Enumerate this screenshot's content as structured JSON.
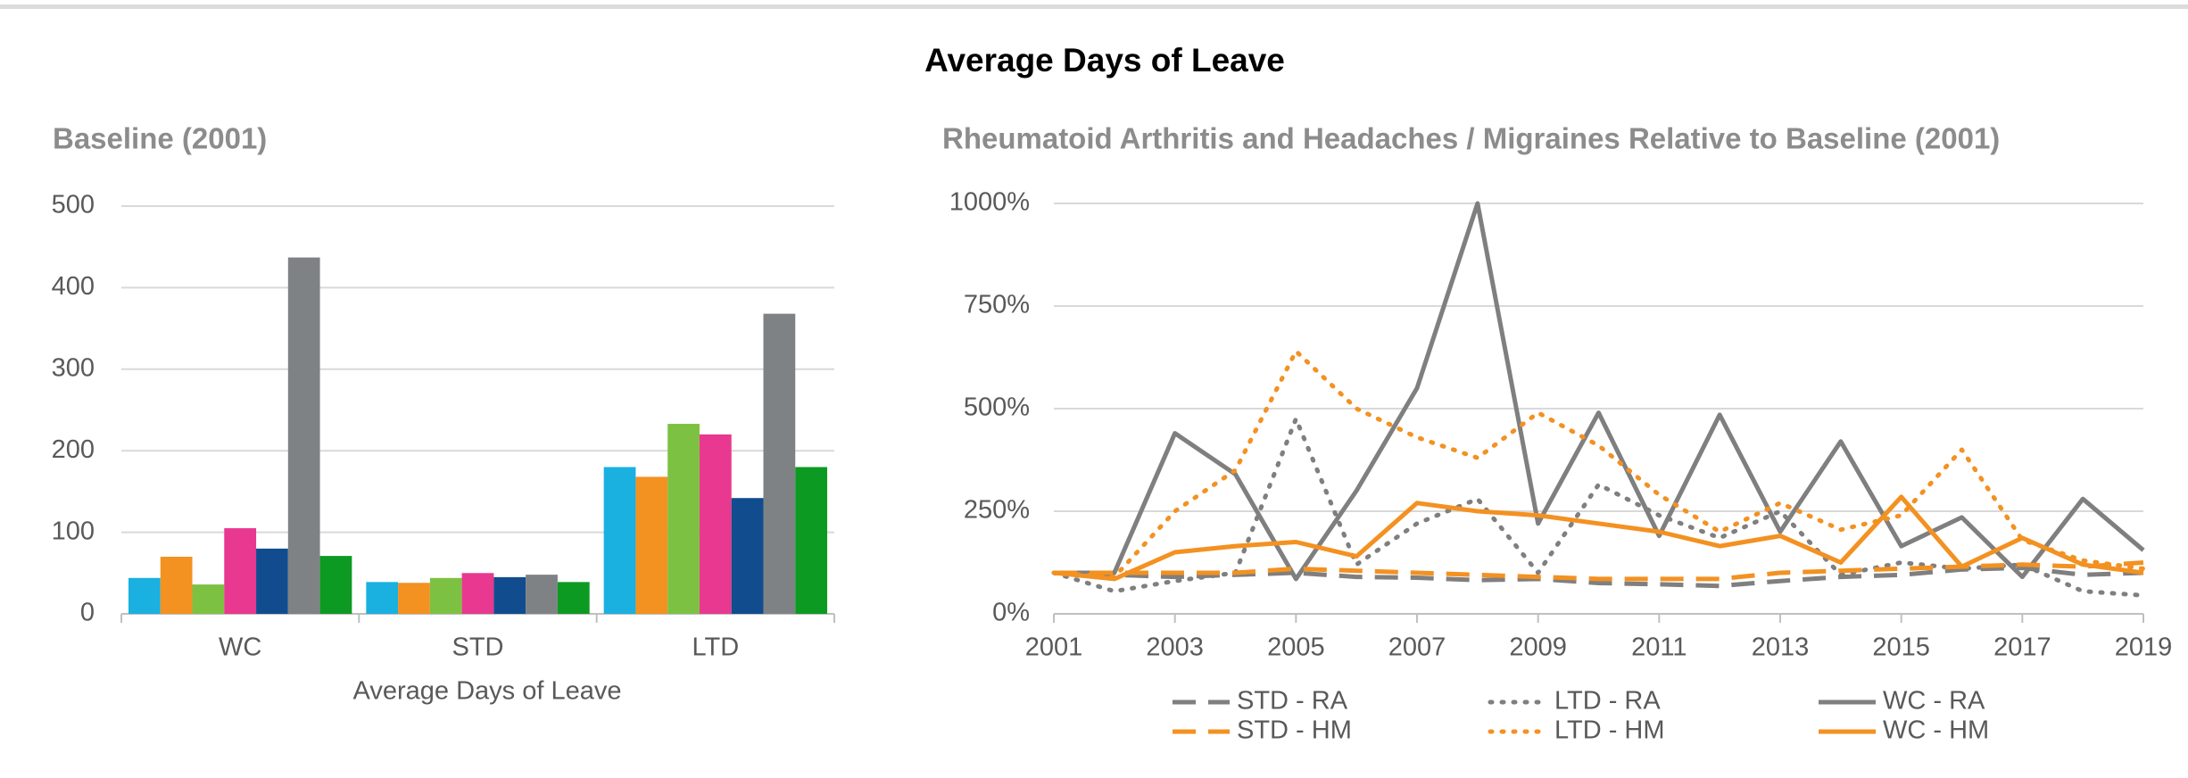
{
  "title": "Average Days of Leave",
  "chart_data": [
    {
      "type": "bar",
      "title": "Baseline (2001)",
      "x_label": "Average Days of Leave",
      "categories": [
        "WC",
        "STD",
        "LTD"
      ],
      "series": [
        {
          "color": "#1ab0e0",
          "values": [
            44,
            39,
            180
          ]
        },
        {
          "color": "#f39121",
          "values": [
            70,
            38,
            168
          ]
        },
        {
          "color": "#7dc142",
          "values": [
            36,
            44,
            233
          ]
        },
        {
          "color": "#e8388f",
          "values": [
            105,
            50,
            220
          ]
        },
        {
          "color": "#114d8e",
          "values": [
            80,
            45,
            142
          ]
        },
        {
          "color": "#7f8285",
          "values": [
            437,
            48,
            368
          ]
        },
        {
          "color": "#0d9a23",
          "values": [
            71,
            39,
            180
          ]
        }
      ],
      "ylim": [
        0,
        500
      ],
      "yticks": [
        0,
        100,
        200,
        300,
        400,
        500
      ],
      "grid": true
    },
    {
      "type": "line",
      "title": "Rheumatoid Arthritis and Headaches / Migraines Relative to Baseline (2001)",
      "x": [
        2001,
        2002,
        2003,
        2004,
        2005,
        2006,
        2007,
        2008,
        2009,
        2010,
        2011,
        2012,
        2013,
        2014,
        2015,
        2016,
        2017,
        2018,
        2019
      ],
      "series": [
        {
          "name": "STD - RA",
          "color": "#7f7f7f",
          "dash": "dashed",
          "values": [
            100,
            95,
            90,
            95,
            100,
            90,
            88,
            82,
            85,
            75,
            72,
            68,
            80,
            90,
            95,
            108,
            112,
            95,
            100
          ]
        },
        {
          "name": "LTD - RA",
          "color": "#7f7f7f",
          "dash": "dotted",
          "values": [
            100,
            55,
            80,
            100,
            475,
            120,
            220,
            280,
            100,
            315,
            240,
            185,
            250,
            95,
            125,
            110,
            120,
            55,
            45
          ]
        },
        {
          "name": "WC - RA",
          "color": "#7f7f7f",
          "dash": "solid",
          "values": [
            100,
            100,
            440,
            340,
            85,
            300,
            550,
            1000,
            220,
            490,
            190,
            485,
            200,
            420,
            165,
            235,
            90,
            280,
            155
          ]
        },
        {
          "name": "STD - HM",
          "color": "#f39121",
          "dash": "dashed",
          "values": [
            100,
            100,
            100,
            100,
            110,
            105,
            100,
            95,
            90,
            85,
            85,
            85,
            100,
            105,
            110,
            115,
            120,
            115,
            125
          ]
        },
        {
          "name": "LTD - HM",
          "color": "#f39121",
          "dash": "dotted",
          "values": [
            100,
            90,
            250,
            350,
            640,
            500,
            430,
            380,
            490,
            410,
            290,
            200,
            270,
            205,
            240,
            400,
            180,
            130,
            110
          ]
        },
        {
          "name": "WC - HM",
          "color": "#f39121",
          "dash": "solid",
          "values": [
            100,
            85,
            150,
            165,
            175,
            140,
            270,
            250,
            240,
            220,
            200,
            165,
            190,
            125,
            285,
            115,
            185,
            120,
            100
          ]
        }
      ],
      "xlim": [
        2001,
        2019
      ],
      "xticks": [
        2001,
        2003,
        2005,
        2007,
        2009,
        2011,
        2013,
        2015,
        2017,
        2019
      ],
      "ylim": [
        0,
        1000
      ],
      "yticks": [
        {
          "value": 0,
          "label": "0%"
        },
        {
          "value": 250,
          "label": "250%"
        },
        {
          "value": 500,
          "label": "500%"
        },
        {
          "value": 750,
          "label": "750%"
        },
        {
          "value": 1000,
          "label": "1000%"
        }
      ],
      "grid": true,
      "legend": "bottom"
    }
  ]
}
